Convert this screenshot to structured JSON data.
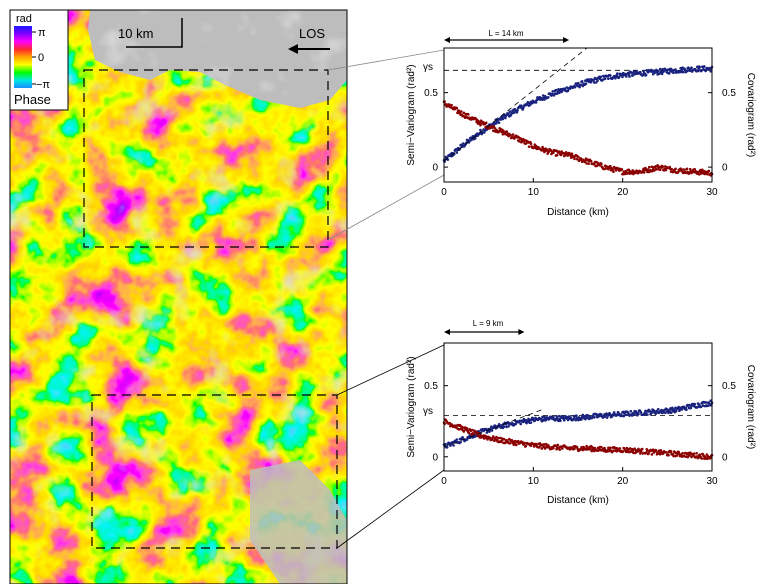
{
  "map": {
    "scale_label": "10 km",
    "los_label": "LOS",
    "colorbar": {
      "unit": "rad",
      "ticks": [
        "π",
        "0",
        "−π"
      ],
      "title": "Phase",
      "colors": [
        "#1a1aff",
        "#7a00ff",
        "#ff00ff",
        "#ff2a2a",
        "#ffa500",
        "#ffff00",
        "#00ff00",
        "#00e6e6",
        "#1a8cff"
      ]
    },
    "masked_color": "#bdbdbd"
  },
  "chart_data": [
    {
      "type": "scatter",
      "xlabel": "Distance (km)",
      "ylabel_left": "Semi−Variogram (rad²)",
      "ylabel_right": "Covariogram (rad²)",
      "xlim": [
        0,
        30
      ],
      "ylim_left": [
        -0.1,
        0.8
      ],
      "ylim_right": [
        -0.1,
        0.8
      ],
      "x_ticks": [
        "0",
        "10",
        "20",
        "30"
      ],
      "y_ticks_left": [
        "0",
        "0.5"
      ],
      "y_ticks_right": [
        "0",
        "0.5"
      ],
      "sill_label": "γs",
      "sill": 0.65,
      "range_label": "L = 14 km",
      "range_km": 14,
      "series": [
        {
          "role": "semivariogram",
          "color": "#1a237e",
          "x": [
            0,
            2,
            4,
            6,
            8,
            10,
            12,
            14,
            16,
            18,
            20,
            22,
            24,
            26,
            28,
            30
          ],
          "y": [
            0.04,
            0.14,
            0.23,
            0.31,
            0.38,
            0.44,
            0.49,
            0.53,
            0.57,
            0.6,
            0.62,
            0.63,
            0.64,
            0.65,
            0.66,
            0.66
          ]
        },
        {
          "role": "covariogram",
          "color": "#8b0000",
          "x": [
            0,
            2,
            4,
            6,
            8,
            10,
            12,
            14,
            16,
            18,
            20,
            22,
            24,
            26,
            28,
            30
          ],
          "y": [
            0.43,
            0.36,
            0.3,
            0.25,
            0.2,
            0.14,
            0.1,
            0.08,
            0.04,
            0.0,
            -0.03,
            -0.03,
            0.0,
            -0.02,
            -0.03,
            -0.04
          ]
        }
      ]
    },
    {
      "type": "scatter",
      "xlabel": "Distance (km)",
      "ylabel_left": "Semi−Variogram (rad²)",
      "ylabel_right": "Covariogram (rad²)",
      "xlim": [
        0,
        30
      ],
      "ylim_left": [
        -0.1,
        0.8
      ],
      "ylim_right": [
        -0.1,
        0.8
      ],
      "x_ticks": [
        "0",
        "10",
        "20",
        "30"
      ],
      "y_ticks_left": [
        "0",
        "0.5"
      ],
      "y_ticks_right": [
        "0",
        "0.5"
      ],
      "sill_label": "γs",
      "sill": 0.29,
      "range_label": "L = 9 km",
      "range_km": 9,
      "series": [
        {
          "role": "semivariogram",
          "color": "#1a237e",
          "x": [
            0,
            2,
            4,
            6,
            8,
            10,
            12,
            14,
            16,
            18,
            20,
            22,
            24,
            26,
            28,
            30
          ],
          "y": [
            0.07,
            0.12,
            0.17,
            0.21,
            0.24,
            0.26,
            0.27,
            0.27,
            0.28,
            0.29,
            0.3,
            0.31,
            0.32,
            0.33,
            0.36,
            0.38
          ]
        },
        {
          "role": "covariogram",
          "color": "#8b0000",
          "x": [
            0,
            2,
            4,
            6,
            8,
            10,
            12,
            14,
            16,
            18,
            20,
            22,
            24,
            26,
            28,
            30
          ],
          "y": [
            0.25,
            0.2,
            0.15,
            0.12,
            0.1,
            0.08,
            0.07,
            0.06,
            0.06,
            0.05,
            0.05,
            0.04,
            0.03,
            0.02,
            0.01,
            0.0
          ]
        }
      ]
    }
  ]
}
